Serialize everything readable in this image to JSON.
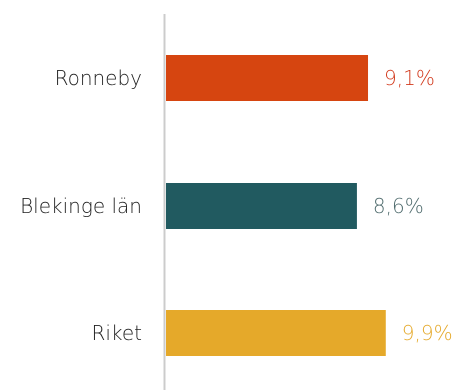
{
  "chart_data": {
    "type": "bar",
    "orientation": "horizontal",
    "categories": [
      "Ronneby",
      "Blekinge län",
      "Riket"
    ],
    "values": [
      9.1,
      8.6,
      9.9
    ],
    "value_labels": [
      "9,1%",
      "8,6%",
      "9,9%"
    ],
    "colors": [
      "#d64510",
      "#215a60",
      "#e5a92a"
    ],
    "label_colors": [
      "#d23a1d",
      "#4f6b6d",
      "#e5a92a"
    ],
    "xlim": [
      0,
      10
    ],
    "grid": false,
    "legend": "none"
  }
}
